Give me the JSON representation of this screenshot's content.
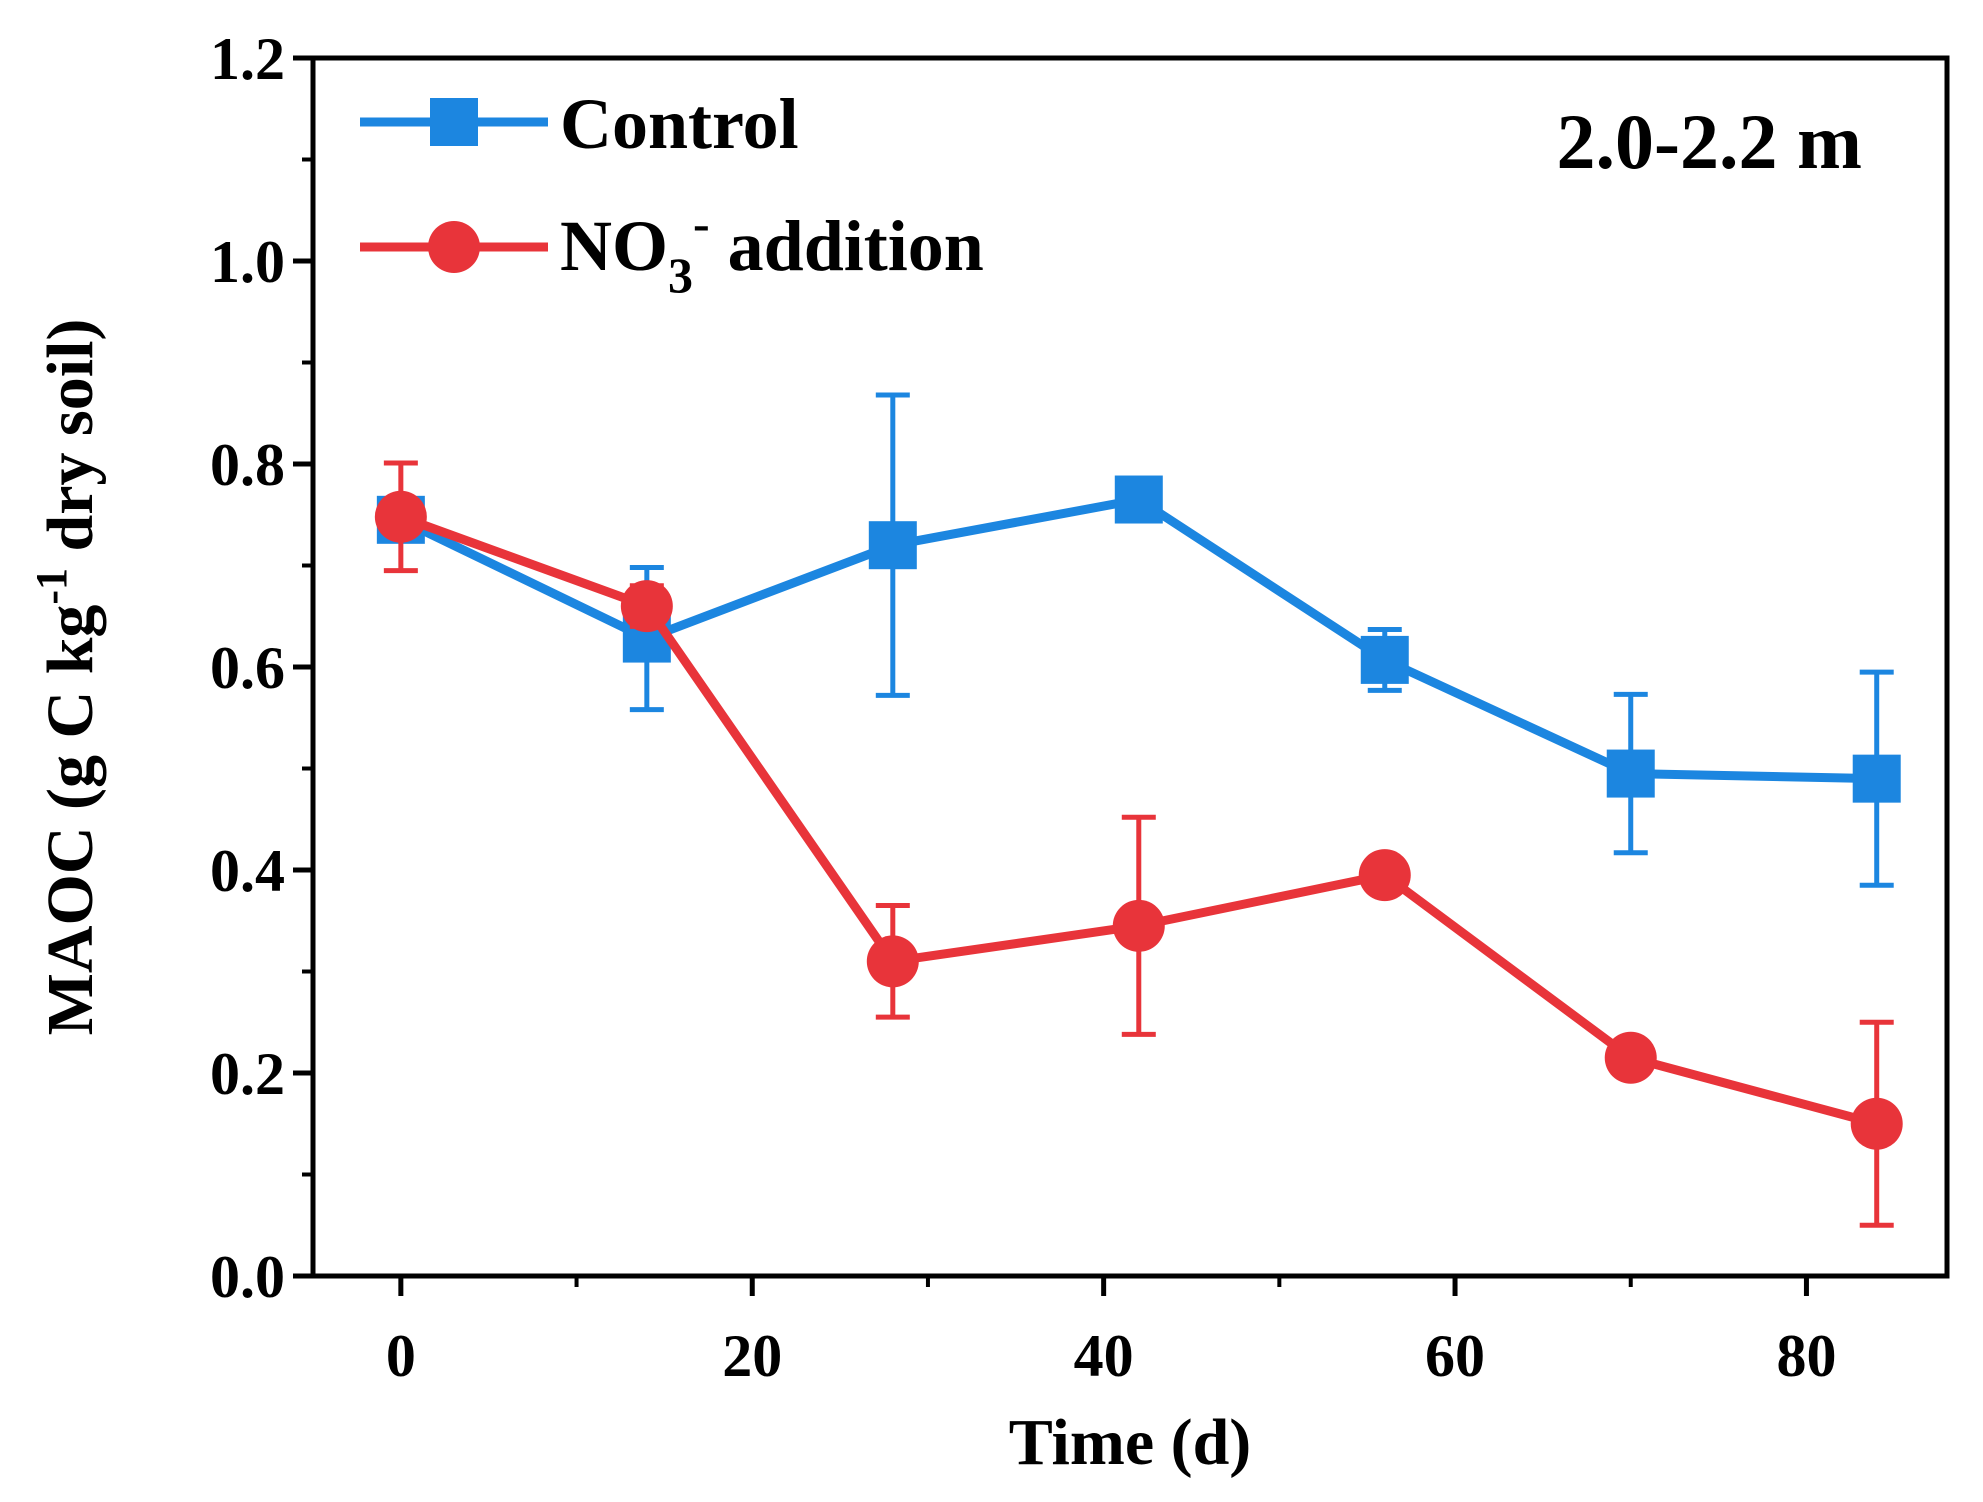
{
  "chart_data": {
    "type": "line",
    "title": "",
    "annotation": "2.0-2.2 m",
    "xlabel": "Time (d)",
    "ylabel": {
      "main": "MAOC (g C kg",
      "superscript": "-1",
      "rest": " dry soil)"
    },
    "xlim": [
      -5,
      88
    ],
    "ylim": [
      0.0,
      1.2
    ],
    "xticks": [
      0,
      20,
      40,
      60,
      80
    ],
    "xtick_labels": [
      "0",
      "20",
      "40",
      "60",
      "80"
    ],
    "yticks": [
      0.0,
      0.2,
      0.4,
      0.6,
      0.8,
      1.0,
      1.2
    ],
    "ytick_labels": [
      "0.0",
      "0.2",
      "0.4",
      "0.6",
      "0.8",
      "1.0",
      "1.2"
    ],
    "grid": false,
    "legend_position": "top-left",
    "series": [
      {
        "name": "Control",
        "color": "#1c86e0",
        "marker": "square",
        "x": [
          0,
          14,
          28,
          42,
          56,
          70,
          84
        ],
        "y": [
          0.745,
          0.628,
          0.72,
          0.765,
          0.607,
          0.495,
          0.49
        ],
        "error": [
          0.02,
          0.07,
          0.148,
          0.015,
          0.03,
          0.078,
          0.105
        ]
      },
      {
        "name": "NO3- addition",
        "label_main": "NO",
        "label_sub": "3",
        "label_sup": "-",
        "label_rest": " addition",
        "color": "#e8343a",
        "marker": "circle",
        "x": [
          0,
          14,
          28,
          42,
          56,
          70,
          84
        ],
        "y": [
          0.748,
          0.66,
          0.31,
          0.345,
          0.395,
          0.215,
          0.15
        ],
        "error": [
          0.053,
          0.02,
          0.055,
          0.107,
          0.01,
          0.01,
          0.1
        ]
      }
    ]
  }
}
